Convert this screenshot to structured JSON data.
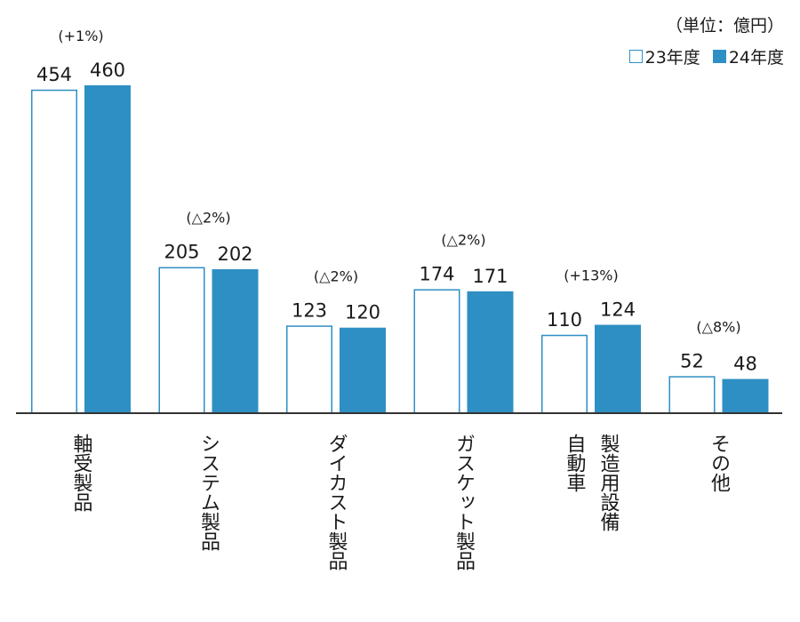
{
  "chart_data": {
    "type": "bar",
    "unit_label": "（単位：億円）",
    "categories": [
      "軸受製品",
      "システム製品",
      "ダイカスト製品",
      "ガスケット製品",
      "自動車製造用設備",
      "その他"
    ],
    "category_lines": [
      [
        "軸受製品"
      ],
      [
        "システム製品"
      ],
      [
        "ダイカスト製品"
      ],
      [
        "ガスケット製品"
      ],
      [
        "自動車",
        "製造用設備"
      ],
      [
        "その他"
      ]
    ],
    "series": [
      {
        "name": "23年度",
        "values": [
          454,
          205,
          123,
          174,
          110,
          52
        ],
        "style": "outline"
      },
      {
        "name": "24年度",
        "values": [
          460,
          202,
          120,
          171,
          124,
          48
        ],
        "style": "filled"
      }
    ],
    "changes": [
      "(+1%)",
      "(△2%)",
      "(△2%)",
      "(△2%)",
      "(+13%)",
      "(△8%)"
    ],
    "ylim": [
      0,
      460
    ],
    "legend_position": "top-right",
    "grid": false,
    "colors": {
      "bar": "#2e8fc4",
      "axis": "#333333"
    }
  }
}
